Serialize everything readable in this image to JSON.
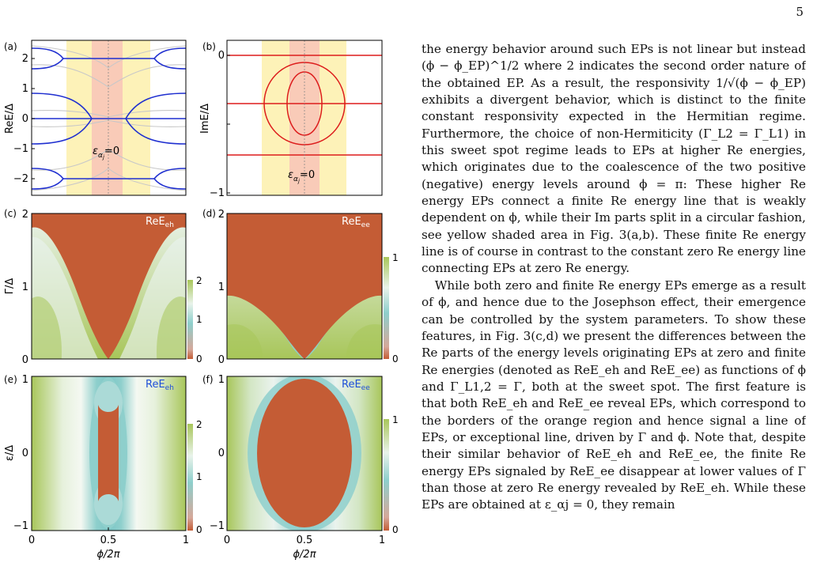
{
  "page_number": "5",
  "text": {
    "para1": "the energy behavior around such EPs is not linear but instead (ϕ − ϕ_EP)^1/2 where 2 indicates the second order nature of the obtained EP. As a result, the responsivity 1/√(ϕ − ϕ_EP) exhibits a divergent behavior, which is distinct to the finite constant responsivity expected in the Hermitian regime. Furthermore, the choice of non-Hermiticity (Γ_L2 = Γ_L1) in this sweet spot regime leads to EPs at higher Re energies, which originates due to the coalescence of the two positive (negative) energy levels around ϕ = π: These higher Re energy EPs connect a finite Re energy line that is weakly dependent on ϕ, while their Im parts split in a circular fashion, see yellow shaded area in Fig. 3(a,b). These finite Re energy line is of course in contrast to the constant zero Re energy line connecting EPs at zero Re energy.",
    "para2": "While both zero and finite Re energy EPs emerge as a result of ϕ, and hence due to the Josephson effect, their emergence can be controlled by the system parameters. To show these features, in Fig. 3(c,d) we present the differences between the Re parts of the energy levels originating EPs at zero and finite Re energies (denoted as ReE_eh and ReE_ee) as functions of ϕ and Γ_L1,2 = Γ, both at the sweet spot. The first feature is that both ReE_eh and ReE_ee reveal EPs, which correspond to the borders of the orange region and hence signal a line of EPs, or exceptional line, driven by Γ and ϕ. Note that, despite their similar behavior of ReE_eh and ReE_ee, the finite Re energy EPs signaled by ReE_ee disappear at lower values of Γ than those at zero Re energy revealed by ReE_eh. While these EPs are obtained at ε_αj = 0, they remain"
  },
  "figure": {
    "colors": {
      "blue": "#1f2fd0",
      "red": "#dd1c1c",
      "gray": "#c8c8c8",
      "yellow_band": "#fdf2b8",
      "pink_band": "#f9cbb8",
      "orange": "#c45c35",
      "mid": "#8ecfcc",
      "green": "#a8c65a"
    },
    "panel_a": {
      "label": "(a)",
      "ylabel": "ReE/Δ",
      "yticks": [
        "2",
        "1",
        "0",
        "−1",
        "−2"
      ],
      "annotation": "ε_αj=0"
    },
    "panel_b": {
      "label": "(b)",
      "ylabel": "ImE/Δ",
      "yticks": [
        "0",
        "−1"
      ],
      "annotation": "ε_αj=0"
    },
    "panel_c": {
      "label": "(c)",
      "ylabel": "Γ/Δ",
      "yticks": [
        "2",
        "1",
        "0"
      ],
      "tag": "ReE_eh",
      "cbar_ticks": [
        "2",
        "1",
        "0"
      ]
    },
    "panel_d": {
      "label": "(d)",
      "yticks": [
        "2",
        "1",
        "0"
      ],
      "tag": "ReE_ee",
      "cbar_ticks": [
        "1",
        "0"
      ]
    },
    "panel_e": {
      "label": "(e)",
      "ylabel": "ε/Δ",
      "yticks": [
        "1",
        "0",
        "−1"
      ],
      "tag": "ReE_eh",
      "cbar_ticks": [
        "2",
        "1",
        "0"
      ],
      "xticks": [
        "0",
        "0.5",
        "1"
      ],
      "xlabel": "ϕ/2π"
    },
    "panel_f": {
      "label": "(f)",
      "yticks": [
        "1",
        "0",
        "−1"
      ],
      "tag": "ReE_ee",
      "cbar_ticks": [
        "1",
        "0"
      ],
      "xticks": [
        "0",
        "0.5",
        "1"
      ],
      "xlabel": "ϕ/2π"
    }
  }
}
